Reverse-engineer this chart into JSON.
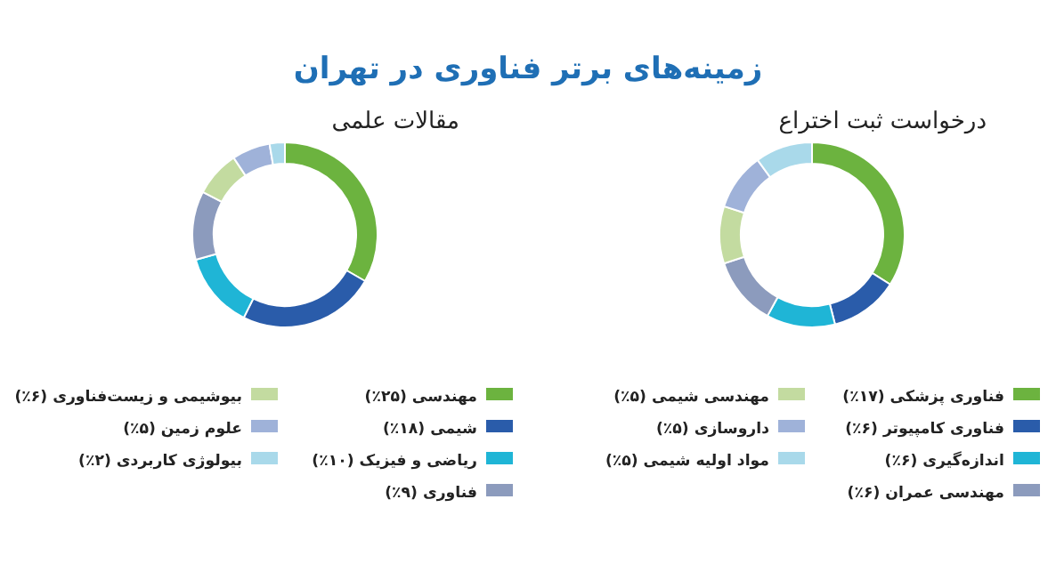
{
  "chart_data": [
    {
      "type": "donut",
      "title": "زمینه‌های برتر فناوری در تهران",
      "subtitle": "درخواست ثبت اختراع",
      "legend": "bottom",
      "categories": [
        "فناوری پزشکی",
        "فناوری کامپیوتر",
        "اندازه‌گیری",
        "مهندسی عمران",
        "مهندسی شیمی",
        "داروسازی",
        "مواد اولیه شیمی"
      ],
      "values": [
        17,
        6,
        6,
        6,
        5,
        5,
        5
      ],
      "value_labels": [
        "(۱۷٪)",
        "(۶٪)",
        "(۶٪)",
        "(۶٪)",
        "(۵٪)",
        "(۵٪)",
        "(۵٪)"
      ],
      "colors": [
        "#6cb33f",
        "#2a5caa",
        "#1fb5d6",
        "#8c9bbd",
        "#c3dba0",
        "#9fb2d9",
        "#a9d9ea"
      ]
    },
    {
      "type": "donut",
      "subtitle": "مقالات علمی",
      "legend": "bottom",
      "categories": [
        "مهندسی",
        "شیمی",
        "ریاضی و فیزیک",
        "فناوری",
        "بیوشیمی و زیست‌فناوری",
        "علوم زمین",
        "بیولوژی کاربردی"
      ],
      "values": [
        25,
        18,
        10,
        9,
        6,
        5,
        2
      ],
      "value_labels": [
        "(۲۵٪)",
        "(۱۸٪)",
        "(۱۰٪)",
        "(۹٪)",
        "(۶٪)",
        "(۵٪)",
        "(۲٪)"
      ],
      "colors": [
        "#6cb33f",
        "#2a5caa",
        "#1fb5d6",
        "#8c9bbd",
        "#c3dba0",
        "#9fb2d9",
        "#a9d9ea"
      ]
    }
  ]
}
